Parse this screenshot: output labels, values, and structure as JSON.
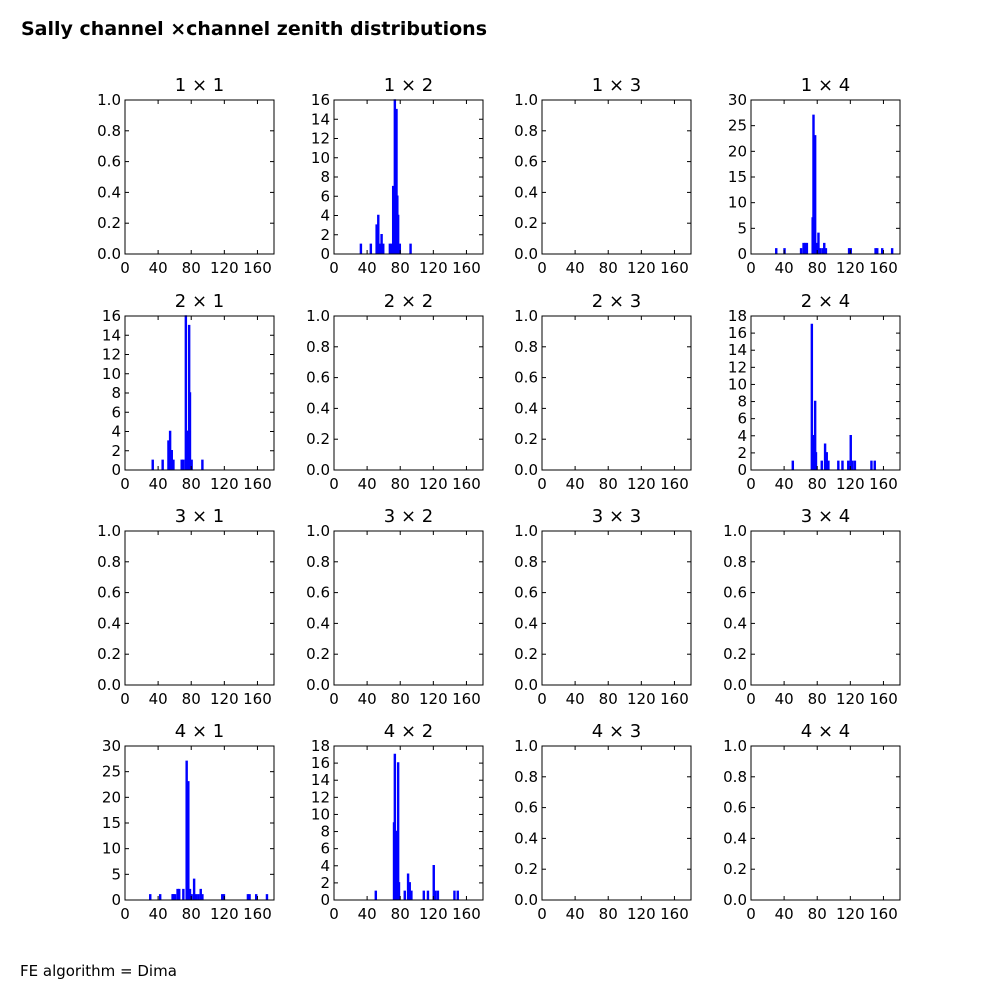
{
  "title": "Sally channel ×channel zenith distributions",
  "footer": "FE algorithm = Dima",
  "style": {
    "line_color": "#0000ff",
    "axes_color": "#000000",
    "background": "#ffffff"
  },
  "chart_data": [
    {
      "type": "bar",
      "title": "1 × 1",
      "xlim": [
        0,
        180
      ],
      "ylim": [
        0,
        1
      ],
      "xticks": [
        "0",
        "40",
        "80",
        "120",
        "160"
      ],
      "yticks": [
        "0.0",
        "0.2",
        "0.4",
        "0.6",
        "0.8",
        "1.0"
      ],
      "bins": []
    },
    {
      "type": "bar",
      "title": "1 × 2",
      "xlim": [
        0,
        180
      ],
      "ylim": [
        0,
        16
      ],
      "xticks": [
        "0",
        "40",
        "80",
        "120",
        "160"
      ],
      "yticks": [
        "0",
        "2",
        "4",
        "6",
        "8",
        "10",
        "12",
        "14",
        "16"
      ],
      "bins": [
        [
          32,
          1
        ],
        [
          44,
          1
        ],
        [
          51,
          3
        ],
        [
          53,
          4
        ],
        [
          55,
          1
        ],
        [
          57,
          2
        ],
        [
          59,
          1
        ],
        [
          67,
          1
        ],
        [
          69,
          1
        ],
        [
          71,
          7
        ],
        [
          72,
          4
        ],
        [
          73,
          16
        ],
        [
          75,
          15
        ],
        [
          76,
          6
        ],
        [
          77,
          4
        ],
        [
          79,
          1
        ],
        [
          92,
          1
        ]
      ]
    },
    {
      "type": "bar",
      "title": "1 × 3",
      "xlim": [
        0,
        180
      ],
      "ylim": [
        0,
        1
      ],
      "xticks": [
        "0",
        "40",
        "80",
        "120",
        "160"
      ],
      "yticks": [
        "0.0",
        "0.2",
        "0.4",
        "0.6",
        "0.8",
        "1.0"
      ],
      "bins": []
    },
    {
      "type": "bar",
      "title": "1 × 4",
      "xlim": [
        0,
        180
      ],
      "ylim": [
        0,
        30
      ],
      "xticks": [
        "0",
        "40",
        "80",
        "120",
        "160"
      ],
      "yticks": [
        "0",
        "5",
        "10",
        "15",
        "20",
        "25",
        "30"
      ],
      "bins": [
        [
          30,
          1
        ],
        [
          40,
          1
        ],
        [
          60,
          1
        ],
        [
          63,
          2
        ],
        [
          65,
          2
        ],
        [
          67,
          2
        ],
        [
          74,
          7
        ],
        [
          75,
          27
        ],
        [
          77,
          23
        ],
        [
          79,
          2
        ],
        [
          81,
          4
        ],
        [
          83,
          1
        ],
        [
          86,
          1
        ],
        [
          88,
          2
        ],
        [
          90,
          1
        ],
        [
          118,
          1
        ],
        [
          120,
          1
        ],
        [
          150,
          1
        ],
        [
          152,
          1
        ],
        [
          158,
          1
        ],
        [
          170,
          1
        ]
      ]
    },
    {
      "type": "bar",
      "title": "2 × 1",
      "xlim": [
        0,
        180
      ],
      "ylim": [
        0,
        16
      ],
      "xticks": [
        "0",
        "40",
        "80",
        "120",
        "160"
      ],
      "yticks": [
        "0",
        "2",
        "4",
        "6",
        "8",
        "10",
        "12",
        "14",
        "16"
      ],
      "bins": [
        [
          33,
          1
        ],
        [
          45,
          1
        ],
        [
          52,
          3
        ],
        [
          54,
          4
        ],
        [
          56,
          2
        ],
        [
          58,
          1
        ],
        [
          68,
          1
        ],
        [
          70,
          1
        ],
        [
          73,
          16
        ],
        [
          74,
          4
        ],
        [
          75,
          4
        ],
        [
          77,
          15
        ],
        [
          78,
          8
        ],
        [
          80,
          1
        ],
        [
          93,
          1
        ]
      ]
    },
    {
      "type": "bar",
      "title": "2 × 2",
      "xlim": [
        0,
        180
      ],
      "ylim": [
        0,
        1
      ],
      "xticks": [
        "0",
        "40",
        "80",
        "120",
        "160"
      ],
      "yticks": [
        "0.0",
        "0.2",
        "0.4",
        "0.6",
        "0.8",
        "1.0"
      ],
      "bins": []
    },
    {
      "type": "bar",
      "title": "2 × 3",
      "xlim": [
        0,
        180
      ],
      "ylim": [
        0,
        1
      ],
      "xticks": [
        "0",
        "40",
        "80",
        "120",
        "160"
      ],
      "yticks": [
        "0.0",
        "0.2",
        "0.4",
        "0.6",
        "0.8",
        "1.0"
      ],
      "bins": []
    },
    {
      "type": "bar",
      "title": "2 × 4",
      "xlim": [
        0,
        180
      ],
      "ylim": [
        0,
        18
      ],
      "xticks": [
        "0",
        "40",
        "80",
        "120",
        "160"
      ],
      "yticks": [
        "0",
        "2",
        "4",
        "6",
        "8",
        "10",
        "12",
        "14",
        "16",
        "18"
      ],
      "bins": [
        [
          50,
          1
        ],
        [
          73,
          17
        ],
        [
          75,
          4
        ],
        [
          77,
          8
        ],
        [
          78,
          2
        ],
        [
          85,
          1
        ],
        [
          89,
          3
        ],
        [
          91,
          2
        ],
        [
          93,
          1
        ],
        [
          105,
          1
        ],
        [
          110,
          1
        ],
        [
          117,
          1
        ],
        [
          120,
          4
        ],
        [
          122,
          1
        ],
        [
          125,
          1
        ],
        [
          145,
          1
        ],
        [
          149,
          1
        ]
      ]
    },
    {
      "type": "bar",
      "title": "3 × 1",
      "xlim": [
        0,
        180
      ],
      "ylim": [
        0,
        1
      ],
      "xticks": [
        "0",
        "40",
        "80",
        "120",
        "160"
      ],
      "yticks": [
        "0.0",
        "0.2",
        "0.4",
        "0.6",
        "0.8",
        "1.0"
      ],
      "bins": []
    },
    {
      "type": "bar",
      "title": "3 × 2",
      "xlim": [
        0,
        180
      ],
      "ylim": [
        0,
        1
      ],
      "xticks": [
        "0",
        "40",
        "80",
        "120",
        "160"
      ],
      "yticks": [
        "0.0",
        "0.2",
        "0.4",
        "0.6",
        "0.8",
        "1.0"
      ],
      "bins": []
    },
    {
      "type": "bar",
      "title": "3 × 3",
      "xlim": [
        0,
        180
      ],
      "ylim": [
        0,
        1
      ],
      "xticks": [
        "0",
        "40",
        "80",
        "120",
        "160"
      ],
      "yticks": [
        "0.0",
        "0.2",
        "0.4",
        "0.6",
        "0.8",
        "1.0"
      ],
      "bins": []
    },
    {
      "type": "bar",
      "title": "3 × 4",
      "xlim": [
        0,
        180
      ],
      "ylim": [
        0,
        1
      ],
      "xticks": [
        "0",
        "40",
        "80",
        "120",
        "160"
      ],
      "yticks": [
        "0.0",
        "0.2",
        "0.4",
        "0.6",
        "0.8",
        "1.0"
      ],
      "bins": []
    },
    {
      "type": "bar",
      "title": "4 × 1",
      "xlim": [
        0,
        180
      ],
      "ylim": [
        0,
        30
      ],
      "xticks": [
        "0",
        "40",
        "80",
        "120",
        "160"
      ],
      "yticks": [
        "0",
        "5",
        "10",
        "15",
        "20",
        "25",
        "30"
      ],
      "bins": [
        [
          30,
          1
        ],
        [
          42,
          1
        ],
        [
          57,
          1
        ],
        [
          58,
          1
        ],
        [
          60,
          1
        ],
        [
          63,
          2
        ],
        [
          65,
          2
        ],
        [
          70,
          2
        ],
        [
          74,
          27
        ],
        [
          76,
          23
        ],
        [
          78,
          2
        ],
        [
          80,
          1
        ],
        [
          83,
          4
        ],
        [
          85,
          1
        ],
        [
          88,
          1
        ],
        [
          91,
          2
        ],
        [
          93,
          1
        ],
        [
          117,
          1
        ],
        [
          119,
          1
        ],
        [
          148,
          1
        ],
        [
          150,
          1
        ],
        [
          158,
          1
        ],
        [
          171,
          1
        ]
      ]
    },
    {
      "type": "bar",
      "title": "4 × 2",
      "xlim": [
        0,
        180
      ],
      "ylim": [
        0,
        18
      ],
      "xticks": [
        "0",
        "40",
        "80",
        "120",
        "160"
      ],
      "yticks": [
        "0",
        "2",
        "4",
        "6",
        "8",
        "10",
        "12",
        "14",
        "16",
        "18"
      ],
      "bins": [
        [
          50,
          1
        ],
        [
          72,
          9
        ],
        [
          73,
          17
        ],
        [
          75,
          8
        ],
        [
          77,
          16
        ],
        [
          78,
          2
        ],
        [
          85,
          1
        ],
        [
          89,
          3
        ],
        [
          91,
          2
        ],
        [
          93,
          1
        ],
        [
          108,
          1
        ],
        [
          113,
          1
        ],
        [
          120,
          4
        ],
        [
          122,
          1
        ],
        [
          125,
          1
        ],
        [
          145,
          1
        ],
        [
          149,
          1
        ]
      ]
    },
    {
      "type": "bar",
      "title": "4 × 3",
      "xlim": [
        0,
        180
      ],
      "ylim": [
        0,
        1
      ],
      "xticks": [
        "0",
        "40",
        "80",
        "120",
        "160"
      ],
      "yticks": [
        "0.0",
        "0.2",
        "0.4",
        "0.6",
        "0.8",
        "1.0"
      ],
      "bins": []
    },
    {
      "type": "bar",
      "title": "4 × 4",
      "xlim": [
        0,
        180
      ],
      "ylim": [
        0,
        1
      ],
      "xticks": [
        "0",
        "40",
        "80",
        "120",
        "160"
      ],
      "yticks": [
        "0.0",
        "0.2",
        "0.4",
        "0.6",
        "0.8",
        "1.0"
      ],
      "bins": []
    }
  ]
}
